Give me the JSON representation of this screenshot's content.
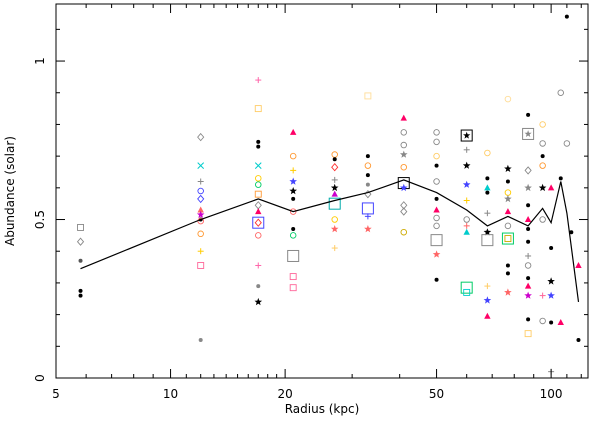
{
  "chart_data": {
    "type": "scatter",
    "title": "",
    "xlabel": "Radius (kpc)",
    "ylabel": "Abundance (solar)",
    "xscale": "log",
    "xlim": [
      5,
      125
    ],
    "ylim": [
      0,
      1.18
    ],
    "xticks": [
      {
        "value": 5,
        "label": "5"
      },
      {
        "value": 10,
        "label": "10"
      },
      {
        "value": 20,
        "label": "20"
      },
      {
        "value": 50,
        "label": "50"
      },
      {
        "value": 100,
        "label": "100"
      }
    ],
    "yticks": [
      {
        "value": 0,
        "label": "0"
      },
      {
        "value": 0.5,
        "label": "0.5"
      },
      {
        "value": 1,
        "label": "1"
      }
    ],
    "grid": false,
    "legend": "none",
    "mean_profile": {
      "x": [
        5.8,
        12,
        17,
        21,
        27,
        33,
        41,
        50,
        60,
        68,
        77,
        87,
        95,
        100,
        106,
        110,
        118
      ],
      "y": [
        0.345,
        0.5,
        0.565,
        0.525,
        0.56,
        0.585,
        0.625,
        0.585,
        0.53,
        0.48,
        0.51,
        0.48,
        0.535,
        0.49,
        0.62,
        0.52,
        0.24
      ]
    },
    "points": [
      {
        "x": 5.8,
        "y": 0.475,
        "m": "square",
        "c": "#888888"
      },
      {
        "x": 5.8,
        "y": 0.43,
        "m": "diamond",
        "c": "#888888"
      },
      {
        "x": 5.8,
        "y": 0.37,
        "m": "dot",
        "c": "#555555"
      },
      {
        "x": 5.8,
        "y": 0.275,
        "m": "dot",
        "c": "#000000"
      },
      {
        "x": 5.8,
        "y": 0.26,
        "m": "dot",
        "c": "#000000"
      },
      {
        "x": 12,
        "y": 0.76,
        "m": "diamond",
        "c": "#888888"
      },
      {
        "x": 12,
        "y": 0.67,
        "m": "cross",
        "c": "#00cccc"
      },
      {
        "x": 12,
        "y": 0.62,
        "m": "plus",
        "c": "#888888"
      },
      {
        "x": 12,
        "y": 0.59,
        "m": "circle",
        "c": "#4444ff"
      },
      {
        "x": 12,
        "y": 0.565,
        "m": "diamond",
        "c": "#4444ff"
      },
      {
        "x": 12,
        "y": 0.53,
        "m": "triangle",
        "c": "#ff6666"
      },
      {
        "x": 12,
        "y": 0.515,
        "m": "star",
        "c": "#cc00cc"
      },
      {
        "x": 12,
        "y": 0.5,
        "m": "dot",
        "c": "#000000"
      },
      {
        "x": 12,
        "y": 0.495,
        "m": "circle",
        "c": "#ff6666"
      },
      {
        "x": 12,
        "y": 0.455,
        "m": "circle",
        "c": "#ff9933"
      },
      {
        "x": 12,
        "y": 0.4,
        "m": "plus",
        "c": "#ffcc00"
      },
      {
        "x": 12,
        "y": 0.355,
        "m": "square",
        "c": "#ff6699"
      },
      {
        "x": 12,
        "y": 0.12,
        "m": "dot",
        "c": "#888888"
      },
      {
        "x": 17,
        "y": 0.94,
        "m": "plus",
        "c": "#ff66aa"
      },
      {
        "x": 17,
        "y": 0.85,
        "m": "square",
        "c": "#ffcc66"
      },
      {
        "x": 17,
        "y": 0.745,
        "m": "dot",
        "c": "#000000"
      },
      {
        "x": 17,
        "y": 0.73,
        "m": "dot",
        "c": "#000000"
      },
      {
        "x": 17,
        "y": 0.67,
        "m": "cross",
        "c": "#00cccc"
      },
      {
        "x": 17,
        "y": 0.63,
        "m": "circle",
        "c": "#ffcc00"
      },
      {
        "x": 17,
        "y": 0.61,
        "m": "circle",
        "c": "#00cc66"
      },
      {
        "x": 17,
        "y": 0.58,
        "m": "square",
        "c": "#ff9933"
      },
      {
        "x": 17,
        "y": 0.545,
        "m": "diamond",
        "c": "#888888"
      },
      {
        "x": 17,
        "y": 0.525,
        "m": "triangle",
        "c": "#ff0066"
      },
      {
        "x": 17,
        "y": 0.49,
        "m": "bigsquare",
        "c": "#4444ff"
      },
      {
        "x": 17,
        "y": 0.49,
        "m": "diamond",
        "c": "#ff3333"
      },
      {
        "x": 17,
        "y": 0.45,
        "m": "circle",
        "c": "#ff6666"
      },
      {
        "x": 17,
        "y": 0.355,
        "m": "plus",
        "c": "#ff66aa"
      },
      {
        "x": 17,
        "y": 0.29,
        "m": "dot",
        "c": "#888888"
      },
      {
        "x": 17,
        "y": 0.24,
        "m": "star",
        "c": "#000000"
      },
      {
        "x": 21,
        "y": 0.775,
        "m": "triangle",
        "c": "#ff0066"
      },
      {
        "x": 21,
        "y": 0.7,
        "m": "circle",
        "c": "#ff9933"
      },
      {
        "x": 21,
        "y": 0.655,
        "m": "plus",
        "c": "#ffcc00"
      },
      {
        "x": 21,
        "y": 0.62,
        "m": "star",
        "c": "#4444ff"
      },
      {
        "x": 21,
        "y": 0.59,
        "m": "star",
        "c": "#000000"
      },
      {
        "x": 21,
        "y": 0.565,
        "m": "dot",
        "c": "#000000"
      },
      {
        "x": 21,
        "y": 0.525,
        "m": "circle",
        "c": "#ff6666"
      },
      {
        "x": 21,
        "y": 0.47,
        "m": "dot",
        "c": "#000000"
      },
      {
        "x": 21,
        "y": 0.45,
        "m": "circle",
        "c": "#00cc66"
      },
      {
        "x": 21,
        "y": 0.385,
        "m": "bigsquare",
        "c": "#888888"
      },
      {
        "x": 21,
        "y": 0.32,
        "m": "square",
        "c": "#ff6699"
      },
      {
        "x": 21,
        "y": 0.285,
        "m": "square",
        "c": "#ff6699"
      },
      {
        "x": 27,
        "y": 0.705,
        "m": "circle",
        "c": "#ff9933"
      },
      {
        "x": 27,
        "y": 0.69,
        "m": "dot",
        "c": "#000000"
      },
      {
        "x": 27,
        "y": 0.665,
        "m": "diamond",
        "c": "#ff3333"
      },
      {
        "x": 27,
        "y": 0.625,
        "m": "plus",
        "c": "#888888"
      },
      {
        "x": 27,
        "y": 0.6,
        "m": "star",
        "c": "#000000"
      },
      {
        "x": 27,
        "y": 0.58,
        "m": "triangle",
        "c": "#cc00cc"
      },
      {
        "x": 27,
        "y": 0.55,
        "m": "bigsquare",
        "c": "#00aaaa"
      },
      {
        "x": 27,
        "y": 0.5,
        "m": "circle",
        "c": "#ffcc00"
      },
      {
        "x": 27,
        "y": 0.47,
        "m": "star",
        "c": "#ff6666"
      },
      {
        "x": 27,
        "y": 0.41,
        "m": "plus",
        "c": "#ffcc66"
      },
      {
        "x": 33,
        "y": 0.89,
        "m": "square",
        "c": "#ffdd99"
      },
      {
        "x": 33,
        "y": 0.7,
        "m": "dot",
        "c": "#000000"
      },
      {
        "x": 33,
        "y": 0.67,
        "m": "circle",
        "c": "#ff9933"
      },
      {
        "x": 33,
        "y": 0.64,
        "m": "dot",
        "c": "#000000"
      },
      {
        "x": 33,
        "y": 0.61,
        "m": "dot",
        "c": "#888888"
      },
      {
        "x": 33,
        "y": 0.58,
        "m": "diamond",
        "c": "#888888"
      },
      {
        "x": 33,
        "y": 0.535,
        "m": "bigsquare",
        "c": "#4444ff"
      },
      {
        "x": 33,
        "y": 0.51,
        "m": "plus",
        "c": "#4444ff"
      },
      {
        "x": 33,
        "y": 0.47,
        "m": "star",
        "c": "#ff6666"
      },
      {
        "x": 41,
        "y": 0.82,
        "m": "triangle",
        "c": "#ff0066"
      },
      {
        "x": 41,
        "y": 0.775,
        "m": "circle",
        "c": "#888888"
      },
      {
        "x": 41,
        "y": 0.735,
        "m": "circle",
        "c": "#888888"
      },
      {
        "x": 41,
        "y": 0.705,
        "m": "star",
        "c": "#888888"
      },
      {
        "x": 41,
        "y": 0.665,
        "m": "circle",
        "c": "#ff9933"
      },
      {
        "x": 41,
        "y": 0.615,
        "m": "bigsquare",
        "c": "#000000"
      },
      {
        "x": 41,
        "y": 0.6,
        "m": "star",
        "c": "#4444ff"
      },
      {
        "x": 41,
        "y": 0.545,
        "m": "diamond",
        "c": "#888888"
      },
      {
        "x": 41,
        "y": 0.525,
        "m": "diamond",
        "c": "#888888"
      },
      {
        "x": 41,
        "y": 0.46,
        "m": "circle",
        "c": "#ccaa00"
      },
      {
        "x": 50,
        "y": 0.775,
        "m": "circle",
        "c": "#888888"
      },
      {
        "x": 50,
        "y": 0.745,
        "m": "circle",
        "c": "#888888"
      },
      {
        "x": 50,
        "y": 0.7,
        "m": "circle",
        "c": "#ffcc66"
      },
      {
        "x": 50,
        "y": 0.67,
        "m": "dot",
        "c": "#000000"
      },
      {
        "x": 50,
        "y": 0.62,
        "m": "circle",
        "c": "#888888"
      },
      {
        "x": 50,
        "y": 0.565,
        "m": "dot",
        "c": "#000000"
      },
      {
        "x": 50,
        "y": 0.53,
        "m": "triangle",
        "c": "#ff0066"
      },
      {
        "x": 50,
        "y": 0.505,
        "m": "circle",
        "c": "#888888"
      },
      {
        "x": 50,
        "y": 0.48,
        "m": "circle",
        "c": "#888888"
      },
      {
        "x": 50,
        "y": 0.435,
        "m": "bigsquare",
        "c": "#888888"
      },
      {
        "x": 50,
        "y": 0.39,
        "m": "star",
        "c": "#ff6666"
      },
      {
        "x": 50,
        "y": 0.31,
        "m": "dot",
        "c": "#000000"
      },
      {
        "x": 60,
        "y": 0.765,
        "m": "boxstar",
        "c": "#000000"
      },
      {
        "x": 60,
        "y": 0.72,
        "m": "plus",
        "c": "#888888"
      },
      {
        "x": 60,
        "y": 0.67,
        "m": "star",
        "c": "#000000"
      },
      {
        "x": 60,
        "y": 0.61,
        "m": "star",
        "c": "#4444ff"
      },
      {
        "x": 60,
        "y": 0.56,
        "m": "plus",
        "c": "#ffcc00"
      },
      {
        "x": 60,
        "y": 0.5,
        "m": "circle",
        "c": "#888888"
      },
      {
        "x": 60,
        "y": 0.48,
        "m": "plus",
        "c": "#ff6666"
      },
      {
        "x": 60,
        "y": 0.46,
        "m": "triangle",
        "c": "#00cccc"
      },
      {
        "x": 60,
        "y": 0.285,
        "m": "bigsquare",
        "c": "#00cc66"
      },
      {
        "x": 60,
        "y": 0.27,
        "m": "square",
        "c": "#00cccc"
      },
      {
        "x": 68,
        "y": 0.71,
        "m": "circle",
        "c": "#ffcc66"
      },
      {
        "x": 68,
        "y": 0.63,
        "m": "dot",
        "c": "#000000"
      },
      {
        "x": 68,
        "y": 0.6,
        "m": "triangle",
        "c": "#00cccc"
      },
      {
        "x": 68,
        "y": 0.585,
        "m": "dot",
        "c": "#000000"
      },
      {
        "x": 68,
        "y": 0.52,
        "m": "plus",
        "c": "#888888"
      },
      {
        "x": 68,
        "y": 0.46,
        "m": "star",
        "c": "#000000"
      },
      {
        "x": 68,
        "y": 0.435,
        "m": "bigsquare",
        "c": "#888888"
      },
      {
        "x": 68,
        "y": 0.29,
        "m": "plus",
        "c": "#ffcc66"
      },
      {
        "x": 68,
        "y": 0.245,
        "m": "star",
        "c": "#4444ff"
      },
      {
        "x": 68,
        "y": 0.195,
        "m": "triangle",
        "c": "#ff0066"
      },
      {
        "x": 77,
        "y": 0.88,
        "m": "circle",
        "c": "#ffdd99"
      },
      {
        "x": 77,
        "y": 0.66,
        "m": "star",
        "c": "#000000"
      },
      {
        "x": 77,
        "y": 0.62,
        "m": "dot",
        "c": "#000000"
      },
      {
        "x": 77,
        "y": 0.585,
        "m": "circle",
        "c": "#ffcc00"
      },
      {
        "x": 77,
        "y": 0.565,
        "m": "star",
        "c": "#888888"
      },
      {
        "x": 77,
        "y": 0.525,
        "m": "triangle",
        "c": "#ff0066"
      },
      {
        "x": 77,
        "y": 0.48,
        "m": "circle",
        "c": "#888888"
      },
      {
        "x": 77,
        "y": 0.44,
        "m": "bigsquare",
        "c": "#00cc66"
      },
      {
        "x": 77,
        "y": 0.44,
        "m": "square",
        "c": "#ccaa00"
      },
      {
        "x": 77,
        "y": 0.355,
        "m": "dot",
        "c": "#000000"
      },
      {
        "x": 77,
        "y": 0.33,
        "m": "dot",
        "c": "#000000"
      },
      {
        "x": 77,
        "y": 0.27,
        "m": "star",
        "c": "#ff6666"
      },
      {
        "x": 87,
        "y": 0.83,
        "m": "dot",
        "c": "#000000"
      },
      {
        "x": 87,
        "y": 0.77,
        "m": "boxstar",
        "c": "#888888"
      },
      {
        "x": 87,
        "y": 0.655,
        "m": "diamond",
        "c": "#888888"
      },
      {
        "x": 87,
        "y": 0.6,
        "m": "star",
        "c": "#888888"
      },
      {
        "x": 87,
        "y": 0.545,
        "m": "dot",
        "c": "#000000"
      },
      {
        "x": 87,
        "y": 0.5,
        "m": "triangle",
        "c": "#ff0066"
      },
      {
        "x": 87,
        "y": 0.47,
        "m": "dot",
        "c": "#000000"
      },
      {
        "x": 87,
        "y": 0.43,
        "m": "dot",
        "c": "#000000"
      },
      {
        "x": 87,
        "y": 0.385,
        "m": "plus",
        "c": "#888888"
      },
      {
        "x": 87,
        "y": 0.355,
        "m": "circle",
        "c": "#888888"
      },
      {
        "x": 87,
        "y": 0.315,
        "m": "dot",
        "c": "#000000"
      },
      {
        "x": 87,
        "y": 0.29,
        "m": "triangle",
        "c": "#ff0066"
      },
      {
        "x": 87,
        "y": 0.26,
        "m": "star",
        "c": "#cc00cc"
      },
      {
        "x": 87,
        "y": 0.185,
        "m": "dot",
        "c": "#000000"
      },
      {
        "x": 87,
        "y": 0.14,
        "m": "square",
        "c": "#ffcc66"
      },
      {
        "x": 95,
        "y": 0.8,
        "m": "circle",
        "c": "#ffcc66"
      },
      {
        "x": 95,
        "y": 0.74,
        "m": "circle",
        "c": "#888888"
      },
      {
        "x": 95,
        "y": 0.7,
        "m": "dot",
        "c": "#000000"
      },
      {
        "x": 95,
        "y": 0.67,
        "m": "circle",
        "c": "#ff9933"
      },
      {
        "x": 95,
        "y": 0.6,
        "m": "star",
        "c": "#000000"
      },
      {
        "x": 95,
        "y": 0.5,
        "m": "circle",
        "c": "#888888"
      },
      {
        "x": 95,
        "y": 0.26,
        "m": "plus",
        "c": "#ff6699"
      },
      {
        "x": 95,
        "y": 0.18,
        "m": "circle",
        "c": "#888888"
      },
      {
        "x": 100,
        "y": 0.6,
        "m": "triangle",
        "c": "#ff0066"
      },
      {
        "x": 100,
        "y": 0.41,
        "m": "dot",
        "c": "#000000"
      },
      {
        "x": 100,
        "y": 0.305,
        "m": "star",
        "c": "#000000"
      },
      {
        "x": 100,
        "y": 0.26,
        "m": "star",
        "c": "#4444ff"
      },
      {
        "x": 100,
        "y": 0.175,
        "m": "dot",
        "c": "#000000"
      },
      {
        "x": 100,
        "y": 0.02,
        "m": "plus",
        "c": "#888888"
      },
      {
        "x": 106,
        "y": 0.9,
        "m": "circle",
        "c": "#888888"
      },
      {
        "x": 106,
        "y": 0.63,
        "m": "dot",
        "c": "#000000"
      },
      {
        "x": 106,
        "y": 0.175,
        "m": "triangle",
        "c": "#ff0066"
      },
      {
        "x": 110,
        "y": 1.14,
        "m": "dot",
        "c": "#000000"
      },
      {
        "x": 110,
        "y": 0.74,
        "m": "circle",
        "c": "#888888"
      },
      {
        "x": 113,
        "y": 0.46,
        "m": "dot",
        "c": "#000000"
      },
      {
        "x": 118,
        "y": 0.355,
        "m": "triangle",
        "c": "#ff0066"
      },
      {
        "x": 118,
        "y": 0.12,
        "m": "dot",
        "c": "#000000"
      }
    ]
  }
}
